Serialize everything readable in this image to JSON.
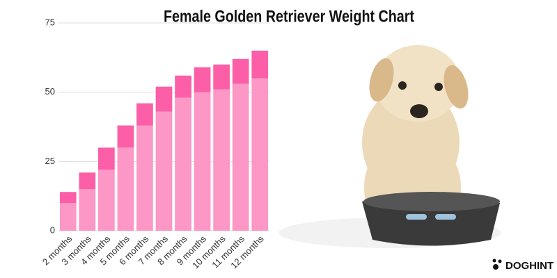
{
  "chart_data": {
    "type": "bar",
    "stacked": true,
    "title": "Female Golden Retriever Weight Chart",
    "categories": [
      "2 months",
      "3 months",
      "4 months",
      "5 months",
      "6 months",
      "7 months",
      "8 months",
      "9 months",
      "10 months",
      "11 months",
      "12 months"
    ],
    "series": [
      {
        "color": "#fd97c5",
        "values": [
          10,
          15,
          22,
          30,
          38,
          43,
          48,
          50,
          51,
          53,
          55
        ]
      },
      {
        "color": "#fc5fa8",
        "values": [
          4,
          6,
          8,
          8,
          8,
          9,
          8,
          9,
          9,
          9,
          10
        ]
      }
    ],
    "ylim": [
      0,
      75
    ],
    "yticks": [
      0,
      25,
      50,
      75
    ],
    "grid": true
  },
  "brand": "DOGHINT"
}
